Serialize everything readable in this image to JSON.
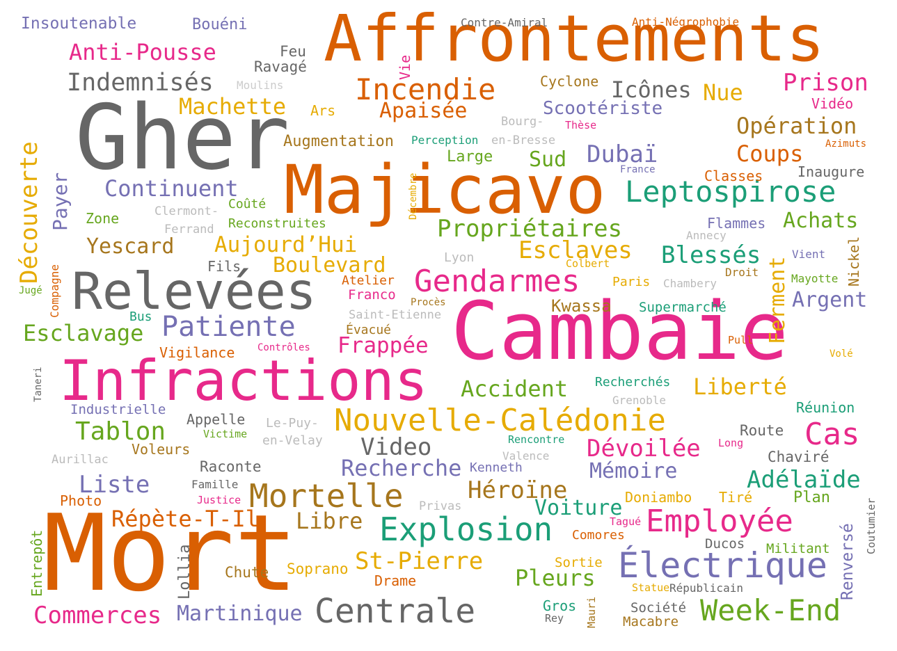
{
  "words": [
    {
      "text": "Affrontements",
      "color": "#d95f02"
    },
    {
      "text": "Gher",
      "color": "#666666"
    },
    {
      "text": "Majicavo",
      "color": "#d95f02"
    },
    {
      "text": "Cambaie",
      "color": "#e7298a"
    },
    {
      "text": "Mort",
      "color": "#d95f02"
    },
    {
      "text": "Infractions",
      "color": "#e7298a"
    },
    {
      "text": "Relevées",
      "color": "#666666"
    },
    {
      "text": "Découverte",
      "color": "#e6ab02"
    },
    {
      "text": "Incendie",
      "color": "#d95f02"
    },
    {
      "text": "Leptospirose",
      "color": "#1b9e77"
    },
    {
      "text": "Nouvelle-Calédonie",
      "color": "#e6ab02"
    },
    {
      "text": "Électrique",
      "color": "#7570b3"
    },
    {
      "text": "Explosion",
      "color": "#1b9e77"
    },
    {
      "text": "Employée",
      "color": "#e7298a"
    },
    {
      "text": "Centrale",
      "color": "#666666"
    },
    {
      "text": "Week-End",
      "color": "#66a61e"
    },
    {
      "text": "Mortelle",
      "color": "#a6761d"
    },
    {
      "text": "Gendarmes",
      "color": "#e7298a"
    },
    {
      "text": "Patiente",
      "color": "#7570b3"
    },
    {
      "text": "Propriétaires",
      "color": "#66a61e"
    },
    {
      "text": "Cas",
      "color": "#e7298a"
    },
    {
      "text": "Anti-Pousse",
      "color": "#e7298a"
    },
    {
      "text": "Indemnisés",
      "color": "#666666"
    },
    {
      "text": "Continuent",
      "color": "#7570b3"
    },
    {
      "text": "Opération",
      "color": "#a6761d"
    },
    {
      "text": "Coups",
      "color": "#d95f02"
    },
    {
      "text": "Prison",
      "color": "#e7298a"
    },
    {
      "text": "Icônes",
      "color": "#666666"
    },
    {
      "text": "Nue",
      "color": "#e6ab02"
    },
    {
      "text": "Dubaï",
      "color": "#7570b3"
    },
    {
      "text": "Esclaves",
      "color": "#e6ab02"
    },
    {
      "text": "Blessés",
      "color": "#1b9e77"
    },
    {
      "text": "Achats",
      "color": "#66a61e"
    },
    {
      "text": "Argent",
      "color": "#7570b3"
    },
    {
      "text": "Ferment",
      "color": "#e6ab02"
    },
    {
      "text": "Aujourd’Hui",
      "color": "#e6ab02"
    },
    {
      "text": "Boulevard",
      "color": "#e6ab02"
    },
    {
      "text": "Esclavage",
      "color": "#66a61e"
    },
    {
      "text": "Frappée",
      "color": "#e7298a"
    },
    {
      "text": "Accident",
      "color": "#66a61e"
    },
    {
      "text": "Liberté",
      "color": "#e6ab02"
    },
    {
      "text": "Video",
      "color": "#666666"
    },
    {
      "text": "Dévoilée",
      "color": "#e7298a"
    },
    {
      "text": "Recherche",
      "color": "#7570b3"
    },
    {
      "text": "Héroïne",
      "color": "#a6761d"
    },
    {
      "text": "Mémoire",
      "color": "#7570b3"
    },
    {
      "text": "Adélaïde",
      "color": "#1b9e77"
    },
    {
      "text": "Liste",
      "color": "#7570b3"
    },
    {
      "text": "Tablon",
      "color": "#66a61e"
    },
    {
      "text": "Répète-T-Il",
      "color": "#d95f02"
    },
    {
      "text": "Libre",
      "color": "#a6761d"
    },
    {
      "text": "St-Pierre",
      "color": "#e6ab02"
    },
    {
      "text": "Pleurs",
      "color": "#66a61e"
    },
    {
      "text": "Voiture",
      "color": "#1b9e77"
    },
    {
      "text": "Commerces",
      "color": "#e7298a"
    },
    {
      "text": "Martinique",
      "color": "#7570b3"
    },
    {
      "text": "Machette",
      "color": "#e6ab02"
    },
    {
      "text": "Apaisée",
      "color": "#d95f02"
    },
    {
      "text": "Scootériste",
      "color": "#7570b3"
    },
    {
      "text": "Yescard",
      "color": "#a6761d"
    },
    {
      "text": "Kwassa",
      "color": "#a6761d"
    },
    {
      "text": "Sud",
      "color": "#66a61e"
    },
    {
      "text": "Payer",
      "color": "#7570b3"
    },
    {
      "text": "Insoutenable",
      "color": "#7570b3"
    },
    {
      "text": "Bouéni",
      "color": "#7570b3"
    },
    {
      "text": "Contre-Amiral",
      "color": "#666666"
    },
    {
      "text": "Anti-Négrophobie",
      "color": "#d95f02"
    },
    {
      "text": "Feu",
      "color": "#666666"
    },
    {
      "text": "Ravagé",
      "color": "#666666"
    },
    {
      "text": "Moulins",
      "color": "#cccccc"
    },
    {
      "text": "Vie",
      "color": "#e7298a"
    },
    {
      "text": "Cyclone",
      "color": "#a6761d"
    },
    {
      "text": "Vidéo",
      "color": "#e7298a"
    },
    {
      "text": "Ars",
      "color": "#e6ab02"
    },
    {
      "text": "Bourg-",
      "color": "#bbbbbb"
    },
    {
      "text": "en-Bresse",
      "color": "#bbbbbb"
    },
    {
      "text": "Thèse",
      "color": "#e7298a"
    },
    {
      "text": "Azimuts",
      "color": "#d95f02"
    },
    {
      "text": "Augmentation",
      "color": "#a6761d"
    },
    {
      "text": "Perception",
      "color": "#1b9e77"
    },
    {
      "text": "Large",
      "color": "#66a61e"
    },
    {
      "text": "France",
      "color": "#7570b3"
    },
    {
      "text": "Classes",
      "color": "#d95f02"
    },
    {
      "text": "Inaugure",
      "color": "#666666"
    },
    {
      "text": "Décembre",
      "color": "#e6ab02"
    },
    {
      "text": "Zone",
      "color": "#66a61e"
    },
    {
      "text": "Clermont-",
      "color": "#bbbbbb"
    },
    {
      "text": "Ferrand",
      "color": "#bbbbbb"
    },
    {
      "text": "Coûté",
      "color": "#66a61e"
    },
    {
      "text": "Reconstruites",
      "color": "#66a61e"
    },
    {
      "text": "Annecy",
      "color": "#bbbbbb"
    },
    {
      "text": "Flammes",
      "color": "#7570b3"
    },
    {
      "text": "Nickel",
      "color": "#a6761d"
    },
    {
      "text": "Vient",
      "color": "#7570b3"
    },
    {
      "text": "Lyon",
      "color": "#bbbbbb"
    },
    {
      "text": "Colbert",
      "color": "#e6ab02"
    },
    {
      "text": "Droit",
      "color": "#a6761d"
    },
    {
      "text": "Mayotte",
      "color": "#66a61e"
    },
    {
      "text": "Fils",
      "color": "#666666"
    },
    {
      "text": "Compagne",
      "color": "#d95f02"
    },
    {
      "text": "Jugé",
      "color": "#66a61e"
    },
    {
      "text": "Atelier",
      "color": "#d95f02"
    },
    {
      "text": "Paris",
      "color": "#e6ab02"
    },
    {
      "text": "Chambery",
      "color": "#bbbbbb"
    },
    {
      "text": "Franco",
      "color": "#e7298a"
    },
    {
      "text": "Procès",
      "color": "#a6761d"
    },
    {
      "text": "Supermarché",
      "color": "#1b9e77"
    },
    {
      "text": "Saint-Etienne",
      "color": "#bbbbbb"
    },
    {
      "text": "Bus",
      "color": "#1b9e77"
    },
    {
      "text": "Évacué",
      "color": "#a6761d"
    },
    {
      "text": "Vigilance",
      "color": "#d95f02"
    },
    {
      "text": "Contrôles",
      "color": "#e7298a"
    },
    {
      "text": "Pull",
      "color": "#d95f02"
    },
    {
      "text": "Volé",
      "color": "#e6ab02"
    },
    {
      "text": "Taneri",
      "color": "#666666"
    },
    {
      "text": "Recherchés",
      "color": "#1b9e77"
    },
    {
      "text": "Grenoble",
      "color": "#bbbbbb"
    },
    {
      "text": "Réunion",
      "color": "#1b9e77"
    },
    {
      "text": "Industrielle",
      "color": "#7570b3"
    },
    {
      "text": "Appelle",
      "color": "#666666"
    },
    {
      "text": "Le-Puy-",
      "color": "#bbbbbb"
    },
    {
      "text": "en-Velay",
      "color": "#bbbbbb"
    },
    {
      "text": "Victime",
      "color": "#66a61e"
    },
    {
      "text": "Voleurs",
      "color": "#a6761d"
    },
    {
      "text": "Rencontre",
      "color": "#1b9e77"
    },
    {
      "text": "Long",
      "color": "#e7298a"
    },
    {
      "text": "Route",
      "color": "#666666"
    },
    {
      "text": "Aurillac",
      "color": "#bbbbbb"
    },
    {
      "text": "Valence",
      "color": "#bbbbbb"
    },
    {
      "text": "Kenneth",
      "color": "#7570b3"
    },
    {
      "text": "Raconte",
      "color": "#666666"
    },
    {
      "text": "Chaviré",
      "color": "#666666"
    },
    {
      "text": "Famille",
      "color": "#666666"
    },
    {
      "text": "Justice",
      "color": "#e7298a"
    },
    {
      "text": "Photo",
      "color": "#d95f02"
    },
    {
      "text": "Privas",
      "color": "#bbbbbb"
    },
    {
      "text": "Doniambo",
      "color": "#e6ab02"
    },
    {
      "text": "Tiré",
      "color": "#e6ab02"
    },
    {
      "text": "Plan",
      "color": "#66a61e"
    },
    {
      "text": "Coutumier",
      "color": "#666666"
    },
    {
      "text": "Renversé",
      "color": "#7570b3"
    },
    {
      "text": "Tagué",
      "color": "#e7298a"
    },
    {
      "text": "Comores",
      "color": "#d95f02"
    },
    {
      "text": "Ducos",
      "color": "#666666"
    },
    {
      "text": "Militant",
      "color": "#66a61e"
    },
    {
      "text": "Entrepôt",
      "color": "#66a61e"
    },
    {
      "text": "Lollia",
      "color": "#666666"
    },
    {
      "text": "Chute",
      "color": "#a6761d"
    },
    {
      "text": "Soprano",
      "color": "#e6ab02"
    },
    {
      "text": "Drame",
      "color": "#d95f02"
    },
    {
      "text": "Sortie",
      "color": "#e6ab02"
    },
    {
      "text": "Statue",
      "color": "#e6ab02"
    },
    {
      "text": "Républicain",
      "color": "#666666"
    },
    {
      "text": "Gros",
      "color": "#1b9e77"
    },
    {
      "text": "Rey",
      "color": "#666666"
    },
    {
      "text": "Mauri",
      "color": "#a6761d"
    },
    {
      "text": "Société",
      "color": "#666666"
    },
    {
      "text": "Macabre",
      "color": "#a6761d"
    }
  ]
}
